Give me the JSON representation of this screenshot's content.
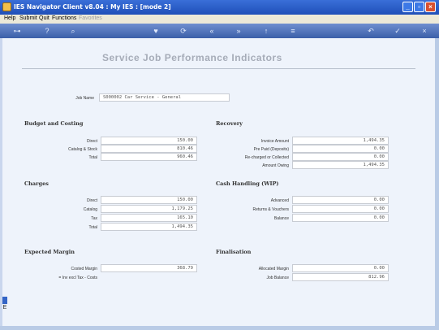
{
  "window": {
    "title": "IES Navigator Client v8.04 : My IES :     [mode 2]"
  },
  "menu": {
    "items": [
      "Help",
      "Submit",
      "Quit",
      "Functions",
      "Favorites"
    ]
  },
  "page": {
    "title": "Service Job Performance Indicators",
    "job_name_label": "Job Name",
    "job_name_value": "S000002 Car Service - General"
  },
  "budget": {
    "title": "Budget and Costing",
    "rows": [
      {
        "label": "Direct",
        "value": "150.00"
      },
      {
        "label": "Catalog & Stock",
        "value": "810.46"
      },
      {
        "label": "Total",
        "value": "960.46"
      }
    ]
  },
  "recovery": {
    "title": "Recovery",
    "rows": [
      {
        "label": "Invoice Amount",
        "value": "1,494.35"
      },
      {
        "label": "Pre Paid (Deposits)",
        "value": "0.00"
      },
      {
        "label": "Re-charged or Collected",
        "value": "0.00"
      },
      {
        "label": "Amount Owing",
        "value": "1,494.35"
      }
    ]
  },
  "charges": {
    "title": "Charges",
    "rows": [
      {
        "label": "Direct",
        "value": "150.00"
      },
      {
        "label": "Catalog",
        "value": "1,179.25"
      },
      {
        "label": "Tax",
        "value": "165.10"
      },
      {
        "label": "Total",
        "value": "1,494.35"
      }
    ]
  },
  "cash": {
    "title": "Cash Handling (WIP)",
    "rows": [
      {
        "label": "Advanced",
        "value": "0.00"
      },
      {
        "label": "Returns & Vouchers",
        "value": "0.00"
      },
      {
        "label": "Balance",
        "value": "0.00"
      }
    ]
  },
  "margin": {
    "title": "Expected Margin",
    "costed_label": "Costed Margin",
    "costed_value": "368.79",
    "note": "= Inv excl Tax - Costs"
  },
  "final": {
    "title": "Finalisation",
    "rows": [
      {
        "label": "Allocated Margin",
        "value": "0.00"
      },
      {
        "label": "Job Balance",
        "value": "812.96"
      }
    ]
  }
}
